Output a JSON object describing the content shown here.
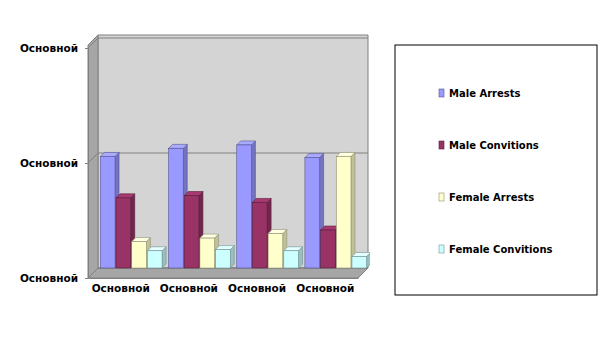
{
  "chart_data": {
    "type": "bar",
    "categories": [
      "Основной",
      "Основной",
      "Основной",
      "Основной"
    ],
    "series": [
      {
        "name": "Male Arrests",
        "color": "#9999ff",
        "values": [
          0.97,
          1.04,
          1.07,
          0.96
        ]
      },
      {
        "name": "Male Convitions",
        "color": "#993366",
        "values": [
          0.61,
          0.63,
          0.57,
          0.33
        ]
      },
      {
        "name": "Female Arrests",
        "color": "#ffffcc",
        "values": [
          0.23,
          0.26,
          0.3,
          0.97
        ]
      },
      {
        "name": "Female Convitions",
        "color": "#ccffff",
        "values": [
          0.15,
          0.16,
          0.15,
          0.1
        ]
      }
    ],
    "ylim": [
      0,
      2
    ],
    "yticks": [
      {
        "value": 0,
        "label": "Основной"
      },
      {
        "value": 1,
        "label": "Основной"
      },
      {
        "value": 2,
        "label": "Основной"
      }
    ],
    "grid": true,
    "legend": "right"
  }
}
